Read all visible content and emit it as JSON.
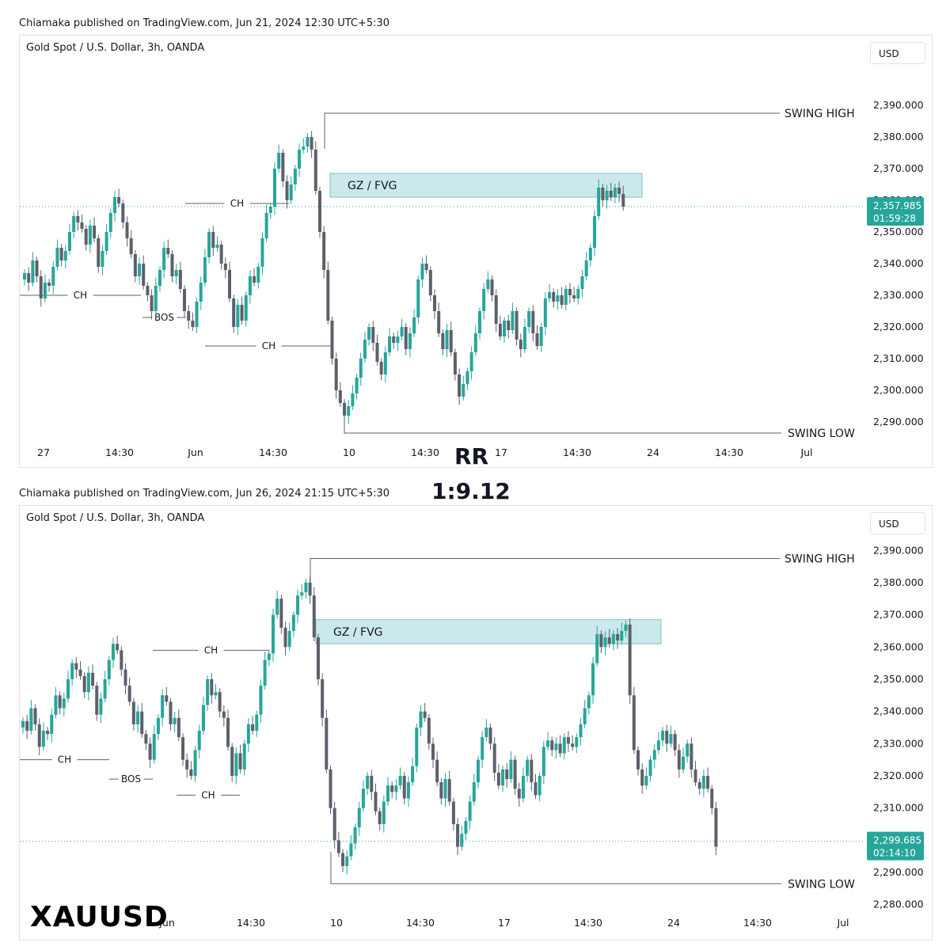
{
  "overlay": {
    "rr_label": "RR",
    "rr_value": "1:9.12",
    "ticker": "XAUUSD"
  },
  "colors": {
    "up": "#26a69a",
    "down": "#5d606b",
    "zone": "#cbe9ec",
    "price_tag": "#26a69a"
  },
  "chart_data": [
    {
      "type": "candlestick",
      "header": "Chiamaka published on TradingView.com, Jun 21, 2024 12:30 UTC+5:30",
      "symbol": "Gold Spot / U.S. Dollar, 3h, OANDA",
      "currency": "USD",
      "yticks": [
        "2,390.000",
        "2,380.000",
        "2,370.000",
        "2,360.000",
        "2,350.000",
        "2,340.000",
        "2,330.000",
        "2,320.000",
        "2,310.000",
        "2,300.000",
        "2,290.000"
      ],
      "xticks": [
        "27",
        "14:30",
        "Jun",
        "14:30",
        "10",
        "14:30",
        "17",
        "14:30",
        "24",
        "14:30",
        "Jul"
      ],
      "ylim": [
        2282,
        2397
      ],
      "last_price": "2,357.985",
      "countdown": "01:59:28",
      "zone": {
        "label": "GZ / FVG",
        "top": 2368.5,
        "bottom": 2361
      },
      "swing_high": {
        "label": "SWING HIGH",
        "price": 2387.5
      },
      "swing_low": {
        "label": "SWING LOW",
        "price": 2286.5
      },
      "markers": [
        {
          "label": "CH",
          "price": 2330
        },
        {
          "label": "BOS",
          "price": 2323
        },
        {
          "label": "CH",
          "price": 2359
        },
        {
          "label": "CH",
          "price": 2314
        }
      ],
      "closes": [
        2337,
        2334,
        2341,
        2336,
        2329,
        2334,
        2333,
        2339,
        2345,
        2341,
        2344,
        2350,
        2355,
        2353,
        2351,
        2346,
        2352,
        2348,
        2339,
        2344,
        2350,
        2356,
        2361,
        2359,
        2353,
        2348,
        2343,
        2336,
        2340,
        2333,
        2330,
        2325,
        2333,
        2338,
        2345,
        2343,
        2336,
        2338,
        2332,
        2325,
        2322,
        2320,
        2328,
        2334,
        2342,
        2350,
        2345,
        2346,
        2340,
        2338,
        2329,
        2320,
        2327,
        2322,
        2330,
        2336,
        2334,
        2339,
        2348,
        2356,
        2358,
        2370,
        2375,
        2366,
        2360,
        2365,
        2370,
        2376,
        2377,
        2380,
        2376,
        2363,
        2350,
        2338,
        2322,
        2310,
        2300,
        2296,
        2292,
        2295,
        2299,
        2304,
        2310,
        2316,
        2320,
        2315,
        2309,
        2305,
        2312,
        2317,
        2315,
        2317,
        2320,
        2313,
        2318,
        2323,
        2335,
        2340,
        2338,
        2330,
        2325,
        2318,
        2313,
        2319,
        2312,
        2305,
        2298,
        2302,
        2306,
        2312,
        2318,
        2325,
        2332,
        2335,
        2330,
        2321,
        2317,
        2322,
        2319,
        2325,
        2316,
        2313,
        2320,
        2325,
        2318,
        2314,
        2320,
        2329,
        2331,
        2328,
        2330,
        2327,
        2332,
        2330,
        2329,
        2332,
        2336,
        2341,
        2345,
        2355,
        2364,
        2360,
        2363,
        2361,
        2364,
        2362,
        2358
      ]
    },
    {
      "type": "candlestick",
      "header": "Chiamaka published on TradingView.com, Jun 26, 2024 21:15 UTC+5:30",
      "symbol": "Gold Spot / U.S. Dollar, 3h, OANDA",
      "currency": "USD",
      "yticks": [
        "2,390.000",
        "2,380.000",
        "2,370.000",
        "2,360.000",
        "2,350.000",
        "2,340.000",
        "2,330.000",
        "2,320.000",
        "2,310.000",
        "2,300.000",
        "2,290.000",
        "2,280.000"
      ],
      "xticks": [
        "Jun",
        "14:30",
        "10",
        "14:30",
        "17",
        "14:30",
        "24",
        "14:30",
        "Jul"
      ],
      "ylim": [
        2276,
        2394
      ],
      "last_price": "2,299.685",
      "countdown": "02:14:10",
      "zone": {
        "label": "GZ / FVG",
        "top": 2368.5,
        "bottom": 2361
      },
      "swing_high": {
        "label": "SWING HIGH",
        "price": 2387.5
      },
      "swing_low": {
        "label": "SWING LOW",
        "price": 2286.5
      },
      "markers": [
        {
          "label": "CH",
          "price": 2325
        },
        {
          "label": "BOS",
          "price": 2319
        },
        {
          "label": "CH",
          "price": 2359
        },
        {
          "label": "CH",
          "price": 2314
        }
      ],
      "closes": [
        2337,
        2334,
        2341,
        2336,
        2329,
        2334,
        2333,
        2339,
        2345,
        2341,
        2344,
        2350,
        2355,
        2353,
        2351,
        2346,
        2352,
        2348,
        2339,
        2344,
        2350,
        2356,
        2361,
        2359,
        2353,
        2348,
        2343,
        2336,
        2340,
        2333,
        2330,
        2325,
        2333,
        2338,
        2345,
        2343,
        2336,
        2338,
        2332,
        2325,
        2322,
        2320,
        2328,
        2334,
        2342,
        2350,
        2345,
        2346,
        2340,
        2338,
        2329,
        2320,
        2327,
        2322,
        2330,
        2336,
        2334,
        2339,
        2348,
        2356,
        2358,
        2370,
        2375,
        2366,
        2360,
        2365,
        2370,
        2376,
        2377,
        2380,
        2376,
        2363,
        2350,
        2338,
        2322,
        2310,
        2300,
        2296,
        2292,
        2295,
        2299,
        2304,
        2310,
        2316,
        2320,
        2315,
        2309,
        2305,
        2312,
        2317,
        2315,
        2317,
        2320,
        2313,
        2318,
        2323,
        2335,
        2340,
        2338,
        2330,
        2325,
        2318,
        2313,
        2319,
        2312,
        2305,
        2298,
        2302,
        2306,
        2312,
        2318,
        2325,
        2332,
        2335,
        2330,
        2321,
        2317,
        2322,
        2319,
        2325,
        2316,
        2313,
        2320,
        2325,
        2318,
        2314,
        2320,
        2329,
        2331,
        2328,
        2330,
        2327,
        2332,
        2330,
        2329,
        2332,
        2336,
        2341,
        2345,
        2355,
        2364,
        2360,
        2363,
        2361,
        2364,
        2362,
        2365,
        2367,
        2345,
        2328,
        2322,
        2317,
        2320,
        2325,
        2328,
        2331,
        2334,
        2330,
        2333,
        2328,
        2322,
        2326,
        2330,
        2322,
        2318,
        2316,
        2320,
        2316,
        2310,
        2298
      ]
    }
  ]
}
